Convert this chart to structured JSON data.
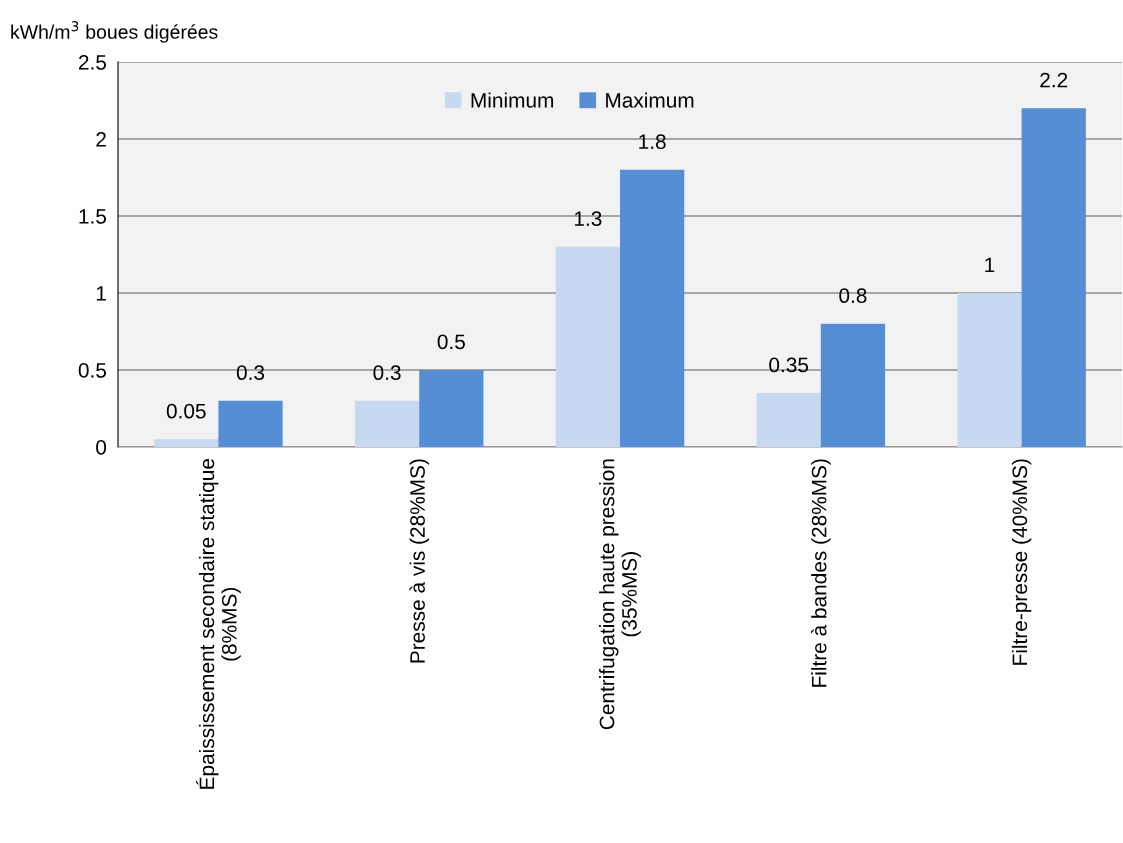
{
  "chart_data": {
    "type": "bar",
    "ylabel": "kWh/m$^{3}$ boues digérées",
    "categories": [
      "Épaississement secondaire statique\n(8%MS)",
      "Presse à vis (28%MS)",
      "Centrifugation haute pression\n(35%MS)",
      "Filtre à bandes (28%MS)",
      "Filtre-presse (40%MS)"
    ],
    "series": [
      {
        "name": "Minimum",
        "color": "#c6d9f1",
        "values": [
          0.05,
          0.3,
          1.3,
          0.35,
          1
        ]
      },
      {
        "name": "Maximum",
        "color": "#558ed5",
        "values": [
          0.3,
          0.5,
          1.8,
          0.8,
          2.2
        ]
      }
    ],
    "ylim": [
      0,
      2.5
    ],
    "yticks": [
      0,
      0.5,
      1,
      1.5,
      2,
      2.5
    ],
    "grid": "y",
    "legend": "top",
    "data_labels": true
  }
}
